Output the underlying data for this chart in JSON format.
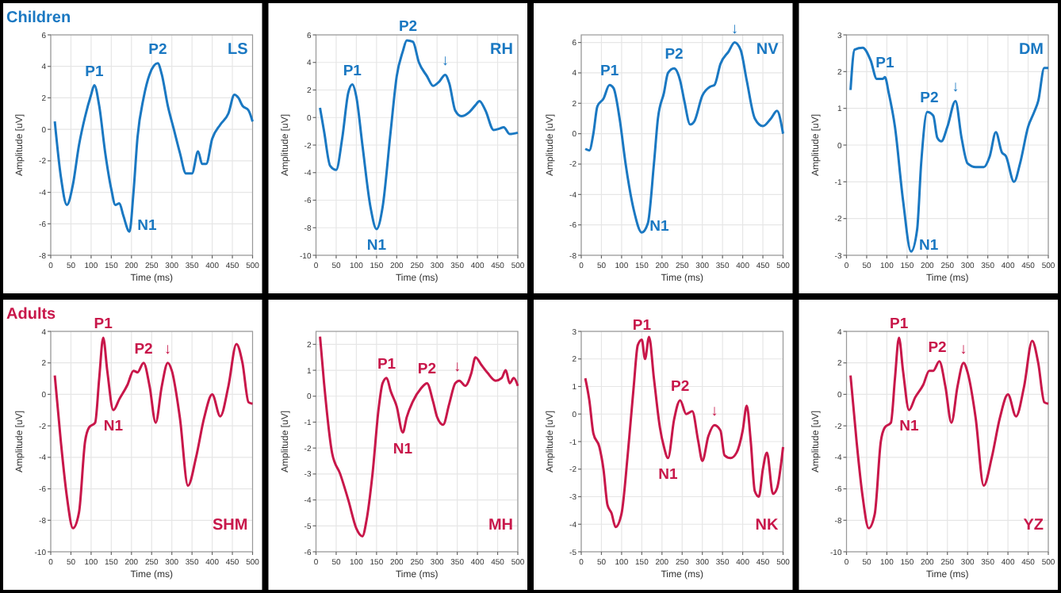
{
  "chart_data": [
    {
      "type": "line",
      "title": "Children",
      "xlabel": "Time (ms)",
      "ylabel": "Amplitude [uV]",
      "xlim": [
        0,
        500
      ],
      "xticks": [
        0,
        50,
        100,
        150,
        200,
        250,
        300,
        350,
        400,
        450,
        500
      ],
      "ylim": [
        -8,
        6
      ],
      "yticks": [
        -8,
        -6,
        -4,
        -2,
        0,
        2,
        4,
        6
      ],
      "grid": true,
      "series": [
        {
          "color": "#1a78c2",
          "x": [
            10,
            25,
            40,
            55,
            70,
            85,
            100,
            108,
            120,
            135,
            150,
            160,
            170,
            180,
            195,
            205,
            215,
            230,
            245,
            265,
            275,
            290,
            305,
            320,
            335,
            350,
            365,
            375,
            385,
            400,
            420,
            440,
            455,
            465,
            475,
            490,
            500
          ],
          "values": [
            0.5,
            -3,
            -4.8,
            -3.5,
            -1,
            0.8,
            2.2,
            2.8,
            1.5,
            -1.5,
            -3.8,
            -4.8,
            -4.7,
            -5.5,
            -6.5,
            -4,
            -0.5,
            2,
            3.5,
            4.2,
            3.5,
            1.5,
            0,
            -1.5,
            -2.8,
            -2.8,
            -1.4,
            -2.2,
            -2.2,
            -0.6,
            0.3,
            1,
            2.2,
            2,
            1.5,
            1.2,
            0.5
          ]
        }
      ],
      "annotations": [
        "LS",
        {
          "text": "P1",
          "x": 108,
          "y": 2.8
        },
        {
          "text": "N1",
          "x": 195,
          "y": -6.5
        },
        {
          "text": "P2",
          "x": 265,
          "y": 4.2
        }
      ]
    },
    {
      "type": "line",
      "xlabel": "Time (ms)",
      "ylabel": "Amplitude [uV]",
      "xlim": [
        0,
        500
      ],
      "xticks": [
        0,
        50,
        100,
        150,
        200,
        250,
        300,
        350,
        400,
        450,
        500
      ],
      "ylim": [
        -10,
        6
      ],
      "yticks": [
        -10,
        -8,
        -6,
        -4,
        -2,
        0,
        2,
        4,
        6
      ],
      "grid": true,
      "series": [
        {
          "color": "#1a78c2",
          "x": [
            10,
            20,
            35,
            50,
            65,
            80,
            90,
            100,
            115,
            135,
            150,
            165,
            185,
            200,
            215,
            225,
            240,
            255,
            275,
            290,
            305,
            320,
            330,
            345,
            360,
            380,
            395,
            405,
            420,
            440,
            455,
            465,
            480,
            500
          ],
          "values": [
            0.7,
            -1,
            -3.5,
            -3.8,
            -1.5,
            1.8,
            2.4,
            1.5,
            -2,
            -6.5,
            -8.1,
            -6.5,
            -1,
            3,
            4.8,
            5.6,
            5.5,
            4,
            3,
            2.3,
            2.6,
            3.1,
            2.5,
            0.5,
            0.1,
            0.4,
            0.9,
            1.2,
            0.5,
            -0.9,
            -0.8,
            -0.7,
            -1.2,
            -1.1
          ]
        }
      ],
      "annotations": [
        "RH",
        {
          "text": "P1",
          "x": 90,
          "y": 2.4
        },
        {
          "text": "N1",
          "x": 150,
          "y": -8.1
        },
        {
          "text": "P2",
          "x": 228,
          "y": 5.6
        },
        {
          "text": "↓",
          "x": 320,
          "y": 3.1
        }
      ]
    },
    {
      "type": "line",
      "xlabel": "Time (ms)",
      "ylabel": "Amplitude [uV]",
      "xlim": [
        0,
        500
      ],
      "xticks": [
        0,
        50,
        100,
        150,
        200,
        250,
        300,
        350,
        400,
        450,
        500
      ],
      "ylim": [
        -8,
        6.5
      ],
      "yticks": [
        -8,
        -6,
        -4,
        -2,
        0,
        2,
        4,
        6
      ],
      "grid": true,
      "series": [
        {
          "color": "#1a78c2",
          "x": [
            10,
            20,
            30,
            40,
            55,
            70,
            80,
            95,
            110,
            130,
            150,
            165,
            180,
            190,
            205,
            215,
            230,
            245,
            255,
            270,
            280,
            300,
            320,
            330,
            345,
            365,
            380,
            395,
            410,
            430,
            450,
            470,
            485,
            500
          ],
          "values": [
            -1,
            -1.1,
            0,
            1.8,
            2.3,
            3.2,
            3,
            1,
            -2,
            -5,
            -6.5,
            -5.9,
            -2,
            1,
            2.7,
            4,
            4.3,
            3.5,
            2.2,
            0.6,
            0.8,
            2.5,
            3.1,
            3.2,
            4.6,
            5.4,
            6,
            5.5,
            3.5,
            1,
            0.5,
            1,
            1.5,
            0
          ]
        }
      ],
      "annotations": [
        "NV",
        {
          "text": "P1",
          "x": 70,
          "y": 3.2
        },
        {
          "text": "N1",
          "x": 150,
          "y": -6.5
        },
        {
          "text": "P2",
          "x": 230,
          "y": 4.3
        },
        {
          "text": "↓",
          "x": 380,
          "y": 6
        }
      ]
    },
    {
      "type": "line",
      "xlabel": "Time (ms)",
      "ylabel": "Amplitude [uV]",
      "xlim": [
        0,
        500
      ],
      "xticks": [
        0,
        50,
        100,
        150,
        200,
        250,
        300,
        350,
        400,
        450,
        500
      ],
      "ylim": [
        -3,
        3
      ],
      "yticks": [
        -3,
        -2,
        -1,
        0,
        1,
        2,
        3
      ],
      "grid": true,
      "series": [
        {
          "color": "#1a78c2",
          "x": [
            10,
            20,
            40,
            60,
            75,
            90,
            95,
            105,
            120,
            140,
            160,
            175,
            185,
            200,
            215,
            225,
            235,
            250,
            270,
            285,
            300,
            320,
            340,
            355,
            370,
            385,
            395,
            415,
            430,
            450,
            465,
            475,
            490,
            500
          ],
          "values": [
            1.5,
            2.6,
            2.65,
            2.3,
            1.8,
            1.8,
            1.85,
            1.4,
            0.5,
            -1.5,
            -2.9,
            -2.3,
            -0.5,
            0.9,
            0.8,
            0.2,
            0.1,
            0.5,
            1.2,
            0.2,
            -0.5,
            -0.6,
            -0.6,
            -0.3,
            0.35,
            -0.2,
            -0.3,
            -1,
            -0.5,
            0.5,
            0.9,
            1.2,
            2.1,
            2.1
          ]
        }
      ],
      "annotations": [
        "DM",
        {
          "text": "P1",
          "x": 95,
          "y": 1.85
        },
        {
          "text": "N1",
          "x": 160,
          "y": -2.9
        },
        {
          "text": "P2",
          "x": 205,
          "y": 0.9
        },
        {
          "text": "↓",
          "x": 270,
          "y": 1.2
        }
      ]
    },
    {
      "type": "line",
      "title": "Adults",
      "xlabel": "Time (ms)",
      "ylabel": "Amplitude [uV]",
      "xlim": [
        0,
        500
      ],
      "xticks": [
        0,
        50,
        100,
        150,
        200,
        250,
        300,
        350,
        400,
        450,
        500
      ],
      "ylim": [
        -10,
        4
      ],
      "yticks": [
        -10,
        -8,
        -6,
        -4,
        -2,
        0,
        2,
        4
      ],
      "grid": true,
      "series": [
        {
          "color": "#c8174a",
          "x": [
            10,
            25,
            40,
            55,
            70,
            85,
            95,
            110,
            120,
            130,
            140,
            155,
            170,
            190,
            205,
            215,
            230,
            245,
            260,
            275,
            290,
            300,
            320,
            340,
            360,
            380,
            400,
            420,
            440,
            460,
            475,
            490,
            500
          ],
          "values": [
            1.2,
            -3,
            -6.5,
            -8.5,
            -7.5,
            -3,
            -2.1,
            -1.8,
            1,
            3.6,
            1.5,
            -1,
            -0.3,
            0.6,
            1.5,
            1.4,
            2,
            0.5,
            -1.8,
            0.5,
            2,
            1.5,
            -1.5,
            -5.8,
            -4,
            -1.5,
            0,
            -1.4,
            0.5,
            3.2,
            2,
            -0.5,
            -0.6
          ]
        }
      ],
      "annotations": [
        "SHM",
        {
          "text": "P1",
          "x": 130,
          "y": 3.6
        },
        {
          "text": "N1",
          "x": 155,
          "y": -1
        },
        {
          "text": "P2",
          "x": 230,
          "y": 2
        },
        {
          "text": "↓",
          "x": 290,
          "y": 2
        }
      ]
    },
    {
      "type": "line",
      "xlabel": "Time (ms)",
      "ylabel": "Amplitude [uV]",
      "xlim": [
        0,
        500
      ],
      "xticks": [
        0,
        50,
        100,
        150,
        200,
        250,
        300,
        350,
        400,
        450,
        500
      ],
      "ylim": [
        -6,
        2.5
      ],
      "yticks": [
        -6,
        -5,
        -4,
        -3,
        -2,
        -1,
        0,
        1,
        2
      ],
      "grid": true,
      "series": [
        {
          "color": "#c8174a",
          "x": [
            10,
            20,
            40,
            60,
            80,
            100,
            115,
            125,
            140,
            155,
            165,
            175,
            185,
            200,
            215,
            225,
            240,
            260,
            275,
            290,
            300,
            315,
            330,
            345,
            355,
            370,
            385,
            395,
            410,
            425,
            445,
            460,
            470,
            480,
            490,
            500
          ],
          "values": [
            2.3,
            0.5,
            -2.2,
            -3,
            -4,
            -5.1,
            -5.4,
            -4.8,
            -3,
            -0.5,
            0.5,
            0.7,
            0.2,
            -0.4,
            -1.4,
            -0.8,
            -0.2,
            0.3,
            0.5,
            -0.2,
            -0.8,
            -1.1,
            -0.3,
            0.5,
            0.6,
            0.4,
            0.9,
            1.5,
            1.2,
            0.9,
            0.6,
            0.7,
            1,
            0.5,
            0.7,
            0.4
          ]
        }
      ],
      "annotations": [
        "MH",
        {
          "text": "P1",
          "x": 175,
          "y": 0.7
        },
        {
          "text": "N1",
          "x": 215,
          "y": -1.4
        },
        {
          "text": "P2",
          "x": 275,
          "y": 0.5
        },
        {
          "text": "↓",
          "x": 350,
          "y": 0.6
        }
      ]
    },
    {
      "type": "line",
      "xlabel": "Time (ms)",
      "ylabel": "Amplitude [uV]",
      "xlim": [
        0,
        500
      ],
      "xticks": [
        0,
        50,
        100,
        150,
        200,
        250,
        300,
        350,
        400,
        450,
        500
      ],
      "ylim": [
        -5,
        3
      ],
      "yticks": [
        -5,
        -4,
        -3,
        -2,
        -1,
        0,
        1,
        2,
        3
      ],
      "grid": true,
      "series": [
        {
          "color": "#c8174a",
          "x": [
            10,
            20,
            30,
            45,
            55,
            65,
            75,
            85,
            100,
            115,
            130,
            140,
            150,
            158,
            168,
            180,
            195,
            205,
            215,
            230,
            245,
            260,
            275,
            290,
            300,
            315,
            330,
            345,
            355,
            370,
            385,
            400,
            410,
            420,
            430,
            440,
            450,
            460,
            475,
            485,
            500
          ],
          "values": [
            1.3,
            0.5,
            -0.7,
            -1.2,
            -2,
            -3.3,
            -3.6,
            -4.1,
            -3.6,
            -1.5,
            1,
            2.5,
            2.7,
            2,
            2.8,
            1.3,
            -0.5,
            -1.2,
            -1.6,
            -0.2,
            0.5,
            0,
            0.1,
            -1,
            -1.7,
            -0.8,
            -0.4,
            -0.6,
            -1.5,
            -1.6,
            -1.4,
            -0.6,
            0.3,
            -1,
            -2.8,
            -3,
            -2,
            -1.4,
            -2.9,
            -2.7,
            -1.2
          ]
        }
      ],
      "annotations": [
        "NK",
        {
          "text": "P1",
          "x": 150,
          "y": 2.7
        },
        {
          "text": "N1",
          "x": 215,
          "y": -1.6
        },
        {
          "text": "P2",
          "x": 245,
          "y": 0.5
        },
        {
          "text": "↓",
          "x": 330,
          "y": -0.4
        }
      ]
    },
    {
      "type": "line",
      "xlabel": "Time (ms)",
      "ylabel": "Amplitude [uV]",
      "xlim": [
        0,
        500
      ],
      "xticks": [
        0,
        50,
        100,
        150,
        200,
        250,
        300,
        350,
        400,
        450,
        500
      ],
      "ylim": [
        -10,
        4
      ],
      "yticks": [
        -10,
        -8,
        -6,
        -4,
        -2,
        0,
        2,
        4
      ],
      "grid": true,
      "series": [
        {
          "color": "#c8174a",
          "x": [
            10,
            25,
            40,
            55,
            70,
            85,
            95,
            110,
            120,
            130,
            140,
            155,
            170,
            190,
            205,
            215,
            230,
            245,
            260,
            275,
            290,
            300,
            320,
            340,
            360,
            380,
            400,
            420,
            440,
            460,
            475,
            490,
            500
          ],
          "values": [
            1.2,
            -3,
            -6.5,
            -8.5,
            -7.6,
            -3,
            -2.1,
            -1.8,
            1,
            3.6,
            1.5,
            -1,
            -0.2,
            0.6,
            1.5,
            1.5,
            2.1,
            0.5,
            -1.8,
            0.5,
            2,
            1.4,
            -1.5,
            -5.8,
            -4,
            -1.5,
            0,
            -1.4,
            0.5,
            3.4,
            2,
            -0.5,
            -0.6
          ]
        }
      ],
      "annotations": [
        "YZ",
        {
          "text": "P1",
          "x": 130,
          "y": 3.6
        },
        {
          "text": "N1",
          "x": 155,
          "y": -1
        },
        {
          "text": "P2",
          "x": 225,
          "y": 2.1
        },
        {
          "text": "↓",
          "x": 290,
          "y": 2
        }
      ]
    }
  ]
}
